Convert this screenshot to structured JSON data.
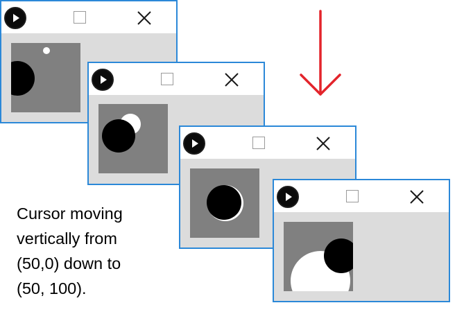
{
  "windows": [
    {
      "id": 1,
      "controls": {
        "icon": "play-icon",
        "maximize": "maximize-icon",
        "close": "close-icon"
      }
    },
    {
      "id": 2,
      "controls": {
        "icon": "play-icon",
        "maximize": "maximize-icon",
        "close": "close-icon"
      }
    },
    {
      "id": 3,
      "controls": {
        "icon": "play-icon",
        "maximize": "maximize-icon",
        "close": "close-icon"
      }
    },
    {
      "id": 4,
      "controls": {
        "icon": "play-icon",
        "maximize": "maximize-icon",
        "close": "close-icon"
      }
    }
  ],
  "arrow": {
    "icon": "arrow-down-icon",
    "color": "#e3242b"
  },
  "colors": {
    "window_border": "#2b88d8",
    "window_body": "#dcdcdc",
    "canvas": "#808080"
  },
  "caption": {
    "lines": [
      "Cursor moving",
      "vertically from",
      "(50,0) down to",
      "(50, 100)."
    ]
  }
}
